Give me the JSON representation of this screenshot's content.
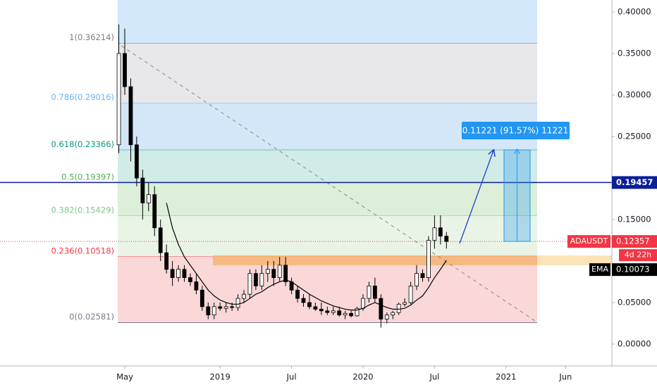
{
  "chart_data": {
    "type": "candlestick",
    "symbol": "ADAUSDT",
    "categories": [
      null,
      "May",
      null,
      null,
      null,
      null,
      null,
      null,
      null,
      null,
      null,
      null,
      null,
      null,
      null,
      null,
      null,
      "2019",
      null,
      null,
      null,
      null,
      null,
      null,
      null,
      null,
      null,
      null,
      null,
      "Jul",
      null,
      null,
      null,
      null,
      null,
      null,
      null,
      null,
      null,
      null,
      null,
      "2020",
      null,
      null,
      null,
      null,
      null,
      null,
      null,
      null,
      null,
      null,
      null,
      "Jul",
      null,
      null,
      null,
      null,
      null,
      null,
      null,
      null,
      null,
      null,
      null,
      "2021",
      null,
      null,
      null,
      null,
      null,
      null,
      null,
      null,
      null,
      "Jun",
      null,
      null,
      null,
      null,
      null,
      null,
      null
    ],
    "open": [
      0.24,
      0.35,
      0.31,
      0.24,
      0.2,
      0.17,
      0.18,
      0.14,
      0.11,
      0.09,
      0.08,
      0.09,
      0.08,
      0.075,
      0.065,
      0.045,
      0.035,
      0.045,
      0.043,
      0.045,
      0.044,
      0.055,
      0.06,
      0.085,
      0.07,
      0.085,
      0.09,
      0.08,
      0.095,
      0.075,
      0.065,
      0.055,
      0.05,
      0.045,
      0.042,
      0.04,
      0.038,
      0.04,
      0.035,
      0.037,
      0.034,
      0.043,
      0.055,
      0.07,
      0.055,
      0.03,
      0.035,
      0.038,
      0.048,
      0.05,
      0.07,
      0.085,
      0.08,
      0.125,
      0.14,
      0.13,
      null,
      null,
      null,
      null,
      null,
      null,
      null,
      null,
      null,
      null,
      null,
      null,
      null,
      null,
      null,
      null,
      null,
      null,
      null,
      null,
      null,
      null,
      null,
      null,
      null,
      null,
      null
    ],
    "high": [
      0.385,
      0.38,
      0.32,
      0.25,
      0.21,
      0.195,
      0.19,
      0.15,
      0.12,
      0.1,
      0.095,
      0.095,
      0.085,
      0.085,
      0.07,
      0.05,
      0.05,
      0.05,
      0.05,
      0.05,
      0.06,
      0.065,
      0.09,
      0.09,
      0.095,
      0.1,
      0.1,
      0.105,
      0.105,
      0.08,
      0.07,
      0.06,
      0.06,
      0.05,
      0.05,
      0.045,
      0.045,
      0.045,
      0.04,
      0.04,
      0.045,
      0.06,
      0.075,
      0.08,
      0.06,
      0.038,
      0.04,
      0.05,
      0.055,
      0.075,
      0.095,
      0.09,
      0.13,
      0.155,
      0.155,
      0.135,
      null,
      null,
      null,
      null,
      null,
      null,
      null,
      null,
      null,
      null,
      null,
      null,
      null,
      null,
      null,
      null,
      null,
      null,
      null,
      null,
      null,
      null,
      null,
      null,
      null,
      null,
      null
    ],
    "low": [
      0.23,
      0.3,
      0.22,
      0.19,
      0.15,
      0.16,
      0.13,
      0.1,
      0.085,
      0.07,
      0.075,
      0.075,
      0.07,
      0.06,
      0.04,
      0.03,
      0.03,
      0.04,
      0.038,
      0.04,
      0.04,
      0.05,
      0.055,
      0.065,
      0.065,
      0.075,
      0.07,
      0.075,
      0.07,
      0.06,
      0.05,
      0.045,
      0.042,
      0.04,
      0.035,
      0.035,
      0.035,
      0.033,
      0.03,
      0.032,
      0.033,
      0.04,
      0.05,
      0.05,
      0.02,
      0.025,
      0.03,
      0.035,
      0.045,
      0.048,
      0.065,
      0.075,
      0.075,
      0.115,
      0.12,
      0.115,
      null,
      null,
      null,
      null,
      null,
      null,
      null,
      null,
      null,
      null,
      null,
      null,
      null,
      null,
      null,
      null,
      null,
      null,
      null,
      null,
      null,
      null,
      null,
      null,
      null,
      null,
      null
    ],
    "close": [
      0.35,
      0.31,
      0.24,
      0.2,
      0.17,
      0.18,
      0.14,
      0.11,
      0.09,
      0.08,
      0.09,
      0.08,
      0.075,
      0.065,
      0.045,
      0.035,
      0.045,
      0.043,
      0.045,
      0.044,
      0.055,
      0.06,
      0.085,
      0.07,
      0.085,
      0.09,
      0.08,
      0.095,
      0.075,
      0.065,
      0.055,
      0.05,
      0.045,
      0.042,
      0.04,
      0.038,
      0.04,
      0.035,
      0.037,
      0.034,
      0.043,
      0.055,
      0.07,
      0.055,
      0.03,
      0.035,
      0.038,
      0.048,
      0.05,
      0.07,
      0.085,
      0.08,
      0.125,
      0.14,
      0.13,
      0.12357,
      null,
      null,
      null,
      null,
      null,
      null,
      null,
      null,
      null,
      null,
      null,
      null,
      null,
      null,
      null,
      null,
      null,
      null,
      null,
      null,
      null,
      null,
      null,
      null,
      null,
      null,
      null
    ],
    "up_color": "#ffffff",
    "down_color": "#000000",
    "ema": {
      "name": "EMA",
      "color": "#000000",
      "last": 0.10073,
      "values": [
        null,
        null,
        null,
        null,
        null,
        null,
        null,
        null,
        0.17,
        0.14,
        0.12,
        0.105,
        0.095,
        0.085,
        0.075,
        0.065,
        0.058,
        0.053,
        0.05,
        0.048,
        0.048,
        0.05,
        0.055,
        0.06,
        0.063,
        0.068,
        0.072,
        0.075,
        0.077,
        0.075,
        0.07,
        0.065,
        0.06,
        0.056,
        0.052,
        0.049,
        0.046,
        0.044,
        0.042,
        0.041,
        0.041,
        0.043,
        0.047,
        0.05,
        0.047,
        0.044,
        0.042,
        0.042,
        0.043,
        0.047,
        0.053,
        0.058,
        0.068,
        0.08,
        0.09,
        0.10073,
        null,
        null,
        null,
        null,
        null,
        null,
        null,
        null,
        null,
        null,
        null,
        null,
        null,
        null,
        null,
        null,
        null,
        null,
        null,
        null,
        null,
        null,
        null,
        null,
        null,
        null,
        null
      ]
    },
    "last_price": 0.12357,
    "last_price_color": "#f23645",
    "countdown": "4d 22h",
    "horizontal_line": {
      "value": 0.19457,
      "color": "#0c1f99"
    },
    "fib_levels": [
      {
        "label": "1(0.36214)",
        "value": 0.36214,
        "color": "#787b86",
        "fill": "#d4e8fb"
      },
      {
        "label": "0.786(0.29016)",
        "value": 0.29016,
        "color": "#64b5f6",
        "fill": "#e8e8ea"
      },
      {
        "label": "0.618(0.23366)",
        "value": 0.23366,
        "color": "#089981",
        "fill": "#d4e7f8"
      },
      {
        "label": "0.5(0.19397)",
        "value": 0.19397,
        "color": "#4caf50",
        "fill": "#d1ebe6"
      },
      {
        "label": "0.382(0.15429)",
        "value": 0.15429,
        "color": "#81c784",
        "fill": "#dcefd9"
      },
      {
        "label": "0.236(0.10518)",
        "value": 0.10518,
        "color": "#f23645",
        "fill": "#e9f4e6"
      },
      {
        "label": "0(0.02581)",
        "value": 0.02581,
        "color": "#787b86",
        "fill": "#fad8d8"
      }
    ],
    "measure_label": "0.11221 (91.57%) 11221",
    "ylim": [
      -0.0263,
      0.4144
    ],
    "yticks": [
      {
        "value": 0,
        "label": "0.00000"
      },
      {
        "value": 0.05,
        "label": "0.05000"
      },
      {
        "value": 0.15,
        "label": "0.15000"
      },
      {
        "value": 0.25,
        "label": "0.25000"
      },
      {
        "value": 0.3,
        "label": "0.30000"
      },
      {
        "value": 0.35,
        "label": "0.35000"
      },
      {
        "value": 0.4,
        "label": "0.40000"
      }
    ]
  }
}
